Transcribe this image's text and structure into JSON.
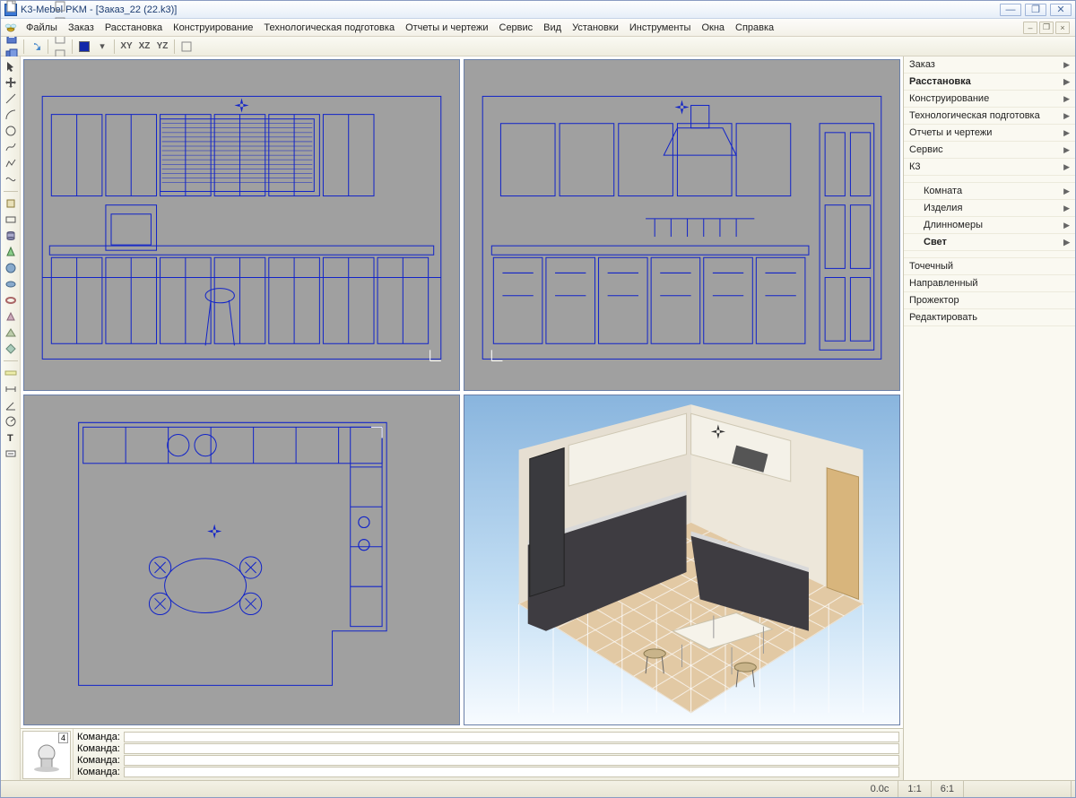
{
  "window": {
    "title": "K3-Mebel PKM - [Заказ_22 (22.k3)]",
    "buttons": {
      "minimize": "—",
      "maximize": "❐",
      "close": "✕"
    }
  },
  "menubar": {
    "items": [
      "Файлы",
      "Заказ",
      "Расстановка",
      "Конструирование",
      "Технологическая подготовка",
      "Отчеты и чертежи",
      "Сервис",
      "Вид",
      "Установки",
      "Инструменты",
      "Окна",
      "Справка"
    ],
    "mdi": {
      "minimize": "–",
      "restore": "❐",
      "close": "×"
    }
  },
  "toolbar1": {
    "icons": [
      "new-file-icon",
      "open-file-icon",
      "save-icon",
      "save-copy-icon",
      "print-icon",
      "plot-icon"
    ],
    "icons2": [
      "undo-icon",
      "redo-icon",
      "cut-icon"
    ],
    "icons3": [
      "measure-icon",
      "select-icon",
      "group-icon",
      "explode-icon",
      "axis-icon",
      "pick-icon",
      "box-icon",
      "dim-icon",
      "chain-icon",
      "snap-icon",
      "align-icon",
      "ortho-icon",
      "render-icon",
      "swap-icon"
    ],
    "swatch_color": "#1228aa",
    "dropdown_icon": "▾",
    "axes": [
      "XY",
      "XZ",
      "YZ"
    ],
    "icons4": [
      "light-icon",
      "eyedropper-icon",
      "props-icon"
    ]
  },
  "left_tools": {
    "groupA": [
      "pointer-icon",
      "move-icon",
      "line-icon",
      "arc-icon",
      "circle-icon",
      "spline-icon",
      "polyline-icon",
      "curve-icon"
    ],
    "groupB": [
      "box3d-icon",
      "rect-icon",
      "cylinder-icon",
      "cone-icon",
      "sphere-icon",
      "ellipsoid-icon",
      "torus-icon",
      "prism-icon",
      "wedge-icon",
      "diamond-icon"
    ],
    "groupC": [
      "ruler-icon",
      "dimension-icon",
      "angle-icon",
      "radius-icon",
      "text-icon",
      "label-icon"
    ]
  },
  "right_panel": {
    "top": [
      {
        "label": "Заказ",
        "bold": false
      },
      {
        "label": "Расстановка",
        "bold": true
      },
      {
        "label": "Конструирование",
        "bold": false
      },
      {
        "label": "Технологическая подготовка",
        "bold": false
      },
      {
        "label": "Отчеты и чертежи",
        "bold": false
      },
      {
        "label": "Сервис",
        "bold": false
      },
      {
        "label": "К3",
        "bold": false
      }
    ],
    "mid": [
      {
        "label": "Комната",
        "bold": false
      },
      {
        "label": "Изделия",
        "bold": false
      },
      {
        "label": "Длинномеры",
        "bold": false
      },
      {
        "label": "Свет",
        "bold": true
      }
    ],
    "sub": [
      "Точечный",
      "Направленный",
      "Прожектор",
      "Редактировать"
    ]
  },
  "viewports": {
    "wire_color": "#1224c8",
    "wire_bg": "#a0a0a0",
    "render3d": {
      "sky_top": "#7fabd8",
      "sky_bottom": "#f0f8ff",
      "floor": "#e2c9a4",
      "floor_grout": "#fefefe",
      "wall": "#e6dfd2",
      "cabinet": "#3e3c41",
      "counter": "#d9d9d9",
      "fridge": "#3a3a3e",
      "door": "#d8b57c"
    }
  },
  "bottom": {
    "badge": "4",
    "cmd_label": "Команда:",
    "lines": [
      "",
      "",
      "",
      ""
    ]
  },
  "statusbar": {
    "cells": [
      "0.0c",
      "1:1",
      "6:1"
    ]
  }
}
